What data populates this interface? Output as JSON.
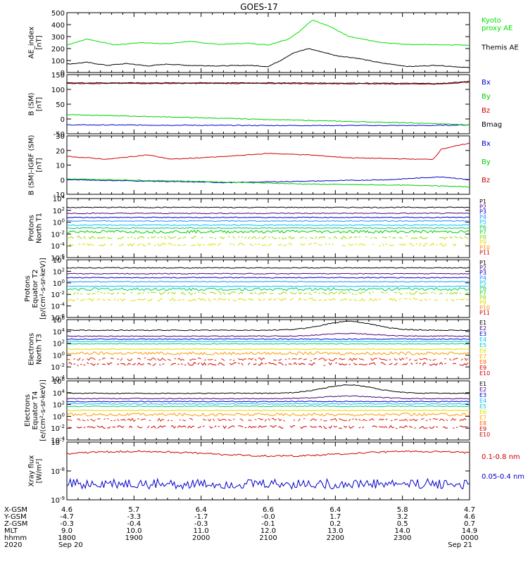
{
  "title": "GOES-17",
  "chart_data": [
    {
      "id": "ae",
      "type": "line",
      "ylabel": "AE_index\n[nT]",
      "yticks": [
        "500",
        "400",
        "300",
        "200",
        "100",
        "0"
      ],
      "ylim": [
        0,
        500
      ],
      "series": [
        {
          "name": "Kyoto\nproxy AE",
          "color": "#00e000",
          "values": [
            [
              0,
              230
            ],
            [
              0.05,
              280
            ],
            [
              0.12,
              230
            ],
            [
              0.18,
              250
            ],
            [
              0.25,
              240
            ],
            [
              0.3,
              260
            ],
            [
              0.38,
              235
            ],
            [
              0.45,
              245
            ],
            [
              0.5,
              230
            ],
            [
              0.55,
              280
            ],
            [
              0.58,
              350
            ],
            [
              0.61,
              440
            ],
            [
              0.65,
              390
            ],
            [
              0.7,
              300
            ],
            [
              0.78,
              250
            ],
            [
              0.85,
              235
            ],
            [
              1,
              230
            ]
          ]
        },
        {
          "name": "Themis AE",
          "color": "#000000",
          "values": [
            [
              0,
              70
            ],
            [
              0.05,
              85
            ],
            [
              0.1,
              60
            ],
            [
              0.15,
              75
            ],
            [
              0.2,
              55
            ],
            [
              0.25,
              70
            ],
            [
              0.3,
              60
            ],
            [
              0.38,
              55
            ],
            [
              0.45,
              60
            ],
            [
              0.5,
              50
            ],
            [
              0.53,
              100
            ],
            [
              0.56,
              160
            ],
            [
              0.6,
              200
            ],
            [
              0.63,
              175
            ],
            [
              0.67,
              140
            ],
            [
              0.72,
              120
            ],
            [
              0.78,
              80
            ],
            [
              0.85,
              50
            ],
            [
              0.92,
              60
            ],
            [
              1,
              40
            ]
          ]
        }
      ]
    },
    {
      "id": "bsm",
      "type": "line",
      "ylabel": "B (SM)\n[nT]",
      "yticks": [
        "150",
        "100",
        "50",
        "0",
        "-50"
      ],
      "ylim": [
        -50,
        150
      ],
      "series": [
        {
          "name": "Bx",
          "color": "#0000cc",
          "values": [
            [
              0,
              -20
            ],
            [
              0.5,
              -22
            ],
            [
              0.9,
              -22
            ],
            [
              1,
              -20
            ]
          ]
        },
        {
          "name": "By",
          "color": "#00cc00",
          "values": [
            [
              0,
              15
            ],
            [
              0.3,
              5
            ],
            [
              0.6,
              -5
            ],
            [
              0.9,
              -15
            ],
            [
              1,
              -20
            ]
          ]
        },
        {
          "name": "Bz",
          "color": "#cc0000",
          "values": [
            [
              0,
              120
            ],
            [
              0.5,
              120
            ],
            [
              0.93,
              118
            ],
            [
              1,
              125
            ]
          ]
        },
        {
          "name": "Bmag",
          "color": "#000000",
          "values": [
            [
              0,
              122
            ],
            [
              0.5,
              122
            ],
            [
              0.93,
              120
            ],
            [
              1,
              127
            ]
          ]
        }
      ]
    },
    {
      "id": "bigrf",
      "type": "line",
      "ylabel": "B (SM)-IGRF (SM)\n[nT]",
      "yticks": [
        "30",
        "20",
        "10",
        "0",
        "-10"
      ],
      "ylim": [
        -10,
        30
      ],
      "series": [
        {
          "name": "Bx",
          "color": "#0000cc",
          "values": [
            [
              0,
              0
            ],
            [
              0.4,
              -2
            ],
            [
              0.8,
              0
            ],
            [
              0.93,
              2
            ],
            [
              1,
              0
            ]
          ]
        },
        {
          "name": "By",
          "color": "#00cc00",
          "values": [
            [
              0,
              0.5
            ],
            [
              0.3,
              -1
            ],
            [
              0.6,
              -3
            ],
            [
              0.9,
              -4
            ],
            [
              1,
              -5
            ]
          ]
        },
        {
          "name": "Bz",
          "color": "#cc0000",
          "values": [
            [
              0,
              16
            ],
            [
              0.1,
              14
            ],
            [
              0.2,
              17
            ],
            [
              0.26,
              14
            ],
            [
              0.4,
              16
            ],
            [
              0.5,
              18
            ],
            [
              0.6,
              17
            ],
            [
              0.7,
              15
            ],
            [
              0.88,
              14
            ],
            [
              0.91,
              14
            ],
            [
              0.93,
              21
            ],
            [
              1,
              25
            ]
          ]
        }
      ]
    },
    {
      "id": "prot_north",
      "type": "line",
      "ylabel": "Protons\nNorth T1",
      "yticks": [
        "10^4",
        "10^2",
        "10^0",
        "10^-2",
        "10^-4",
        "10^-6"
      ],
      "ylim": [
        -6,
        4
      ],
      "legend": [
        "P1",
        "P2",
        "P3",
        "P4",
        "P5",
        "P6",
        "P7",
        "P8",
        "P9",
        "P10",
        "P11"
      ],
      "colors": [
        "#000000",
        "#4b0082",
        "#0000cc",
        "#1e90ff",
        "#00bfff",
        "#00cc66",
        "#00dd00",
        "#88dd00",
        "#dddd00",
        "#ff8800",
        "#cc0000"
      ],
      "levels": [
        2.5,
        1.5,
        0.8,
        0.2,
        -0.5,
        -1,
        -1.6,
        -2.6,
        -3.8
      ],
      "colors_used": [
        "#000000",
        "#4b0082",
        "#0000cc",
        "#1e90ff",
        "#00bfff",
        "#00cc66",
        "#00cc00",
        "#99dd00",
        "#dddd00"
      ]
    },
    {
      "id": "prot_eq",
      "type": "line",
      "ylabel": "Protons\nEquator T2\n[p/(cm²-s-sr-keV)]",
      "yticks": [
        "10^4",
        "10^2",
        "10^0",
        "10^-2",
        "10^-4",
        "10^-6"
      ],
      "ylim": [
        -6,
        4
      ],
      "legend": [
        "P1",
        "P2",
        "P3",
        "P4",
        "P5",
        "P6",
        "P7",
        "P8",
        "P9",
        "P10",
        "P11"
      ],
      "colors": [
        "#000000",
        "#4b0082",
        "#0000cc",
        "#1e90ff",
        "#00bfff",
        "#00cc66",
        "#00dd00",
        "#88dd00",
        "#dddd00",
        "#ff8800",
        "#cc0000"
      ],
      "levels": [
        2.6,
        1.6,
        0.9,
        0.2,
        -0.6,
        -1.1,
        -1.8,
        -2.9
      ],
      "colors_used": [
        "#000000",
        "#4b0082",
        "#0000cc",
        "#1e90ff",
        "#00bfff",
        "#00cc66",
        "#99dd00",
        "#dddd00"
      ]
    },
    {
      "id": "elec_north",
      "type": "line",
      "ylabel": "Electrons\nNorth T3",
      "yticks": [
        "10^6",
        "10^4",
        "10^2",
        "10^0",
        "10^-2",
        "10^-4"
      ],
      "ylim": [
        -4,
        6
      ],
      "legend": [
        "E1",
        "E2",
        "E3",
        "E4",
        "E5",
        "E6",
        "E7",
        "E8",
        "E9",
        "E10"
      ],
      "colors": [
        "#000000",
        "#4b0082",
        "#0000cc",
        "#00bfff",
        "#00cccc",
        "#dddd00",
        "#ffaa00",
        "#ff6600",
        "#cc0000",
        "#cc0000"
      ],
      "levels": [
        4.2,
        3.2,
        2.7,
        2.3,
        1.9,
        1.0,
        0.3,
        -0.7,
        -1.5
      ],
      "colors_used": [
        "#000000",
        "#4b0082",
        "#0000cc",
        "#00bfff",
        "#00cc66",
        "#dddd00",
        "#ff9900",
        "#dd2200",
        "#cc0000"
      ],
      "hump": 1.5
    },
    {
      "id": "elec_eq",
      "type": "line",
      "ylabel": "Electrons\nEquator T4\n[e/(cm²-s-sr-keV)]",
      "yticks": [
        "10^6",
        "10^4",
        "10^2",
        "10^0",
        "10^-2",
        "10^-4"
      ],
      "ylim": [
        -4,
        6
      ],
      "legend": [
        "E1",
        "E2",
        "E3",
        "E4",
        "E5",
        "E6",
        "E7",
        "E8",
        "E9",
        "E10"
      ],
      "colors": [
        "#000000",
        "#4b0082",
        "#0000cc",
        "#00bfff",
        "#00cccc",
        "#dddd00",
        "#ffaa00",
        "#ff6600",
        "#cc0000",
        "#cc0000"
      ],
      "levels": [
        3.9,
        3.0,
        2.5,
        2.1,
        1.7,
        1.0,
        0.3,
        -0.6,
        -1.8
      ],
      "colors_used": [
        "#000000",
        "#4b0082",
        "#0000cc",
        "#00bfff",
        "#00cc66",
        "#dddd00",
        "#ff9900",
        "#dd2200",
        "#cc0000"
      ],
      "hump": 1.4
    },
    {
      "id": "xray",
      "type": "line",
      "ylabel": "Xray flux\n[W/m²]",
      "yticks": [
        "10^-7",
        "10^-8",
        "10^-9"
      ],
      "ylim": [
        -9,
        -7
      ],
      "series": [
        {
          "name": "0.1-0.8 nm",
          "color": "#cc0000",
          "level": -7.4
        },
        {
          "name": "0.05-0.4 nm",
          "color": "#0000cc",
          "level": -8.45
        }
      ]
    }
  ],
  "axis_table": {
    "labels": [
      "X-GSM",
      "Y-GSM",
      "Z-GSM",
      "MLT",
      "hhmm",
      "2020"
    ],
    "columns": [
      [
        "4.6",
        "-4.7",
        "-0.3",
        "9.0",
        "1800",
        "Sep 20"
      ],
      [
        "5.7",
        "-3.3",
        "-0.4",
        "10.0",
        "1900",
        ""
      ],
      [
        "6.4",
        "-1.7",
        "-0.3",
        "11.0",
        "2000",
        ""
      ],
      [
        "6.6",
        "-0.0",
        "-0.1",
        "12.0",
        "2100",
        ""
      ],
      [
        "6.4",
        "1.7",
        "0.2",
        "13.0",
        "2200",
        ""
      ],
      [
        "5.8",
        "3.2",
        "0.5",
        "14.0",
        "2300",
        ""
      ],
      [
        "4.7",
        "4.6",
        "0.7",
        "14.9",
        "0000",
        "Sep 21"
      ]
    ]
  }
}
